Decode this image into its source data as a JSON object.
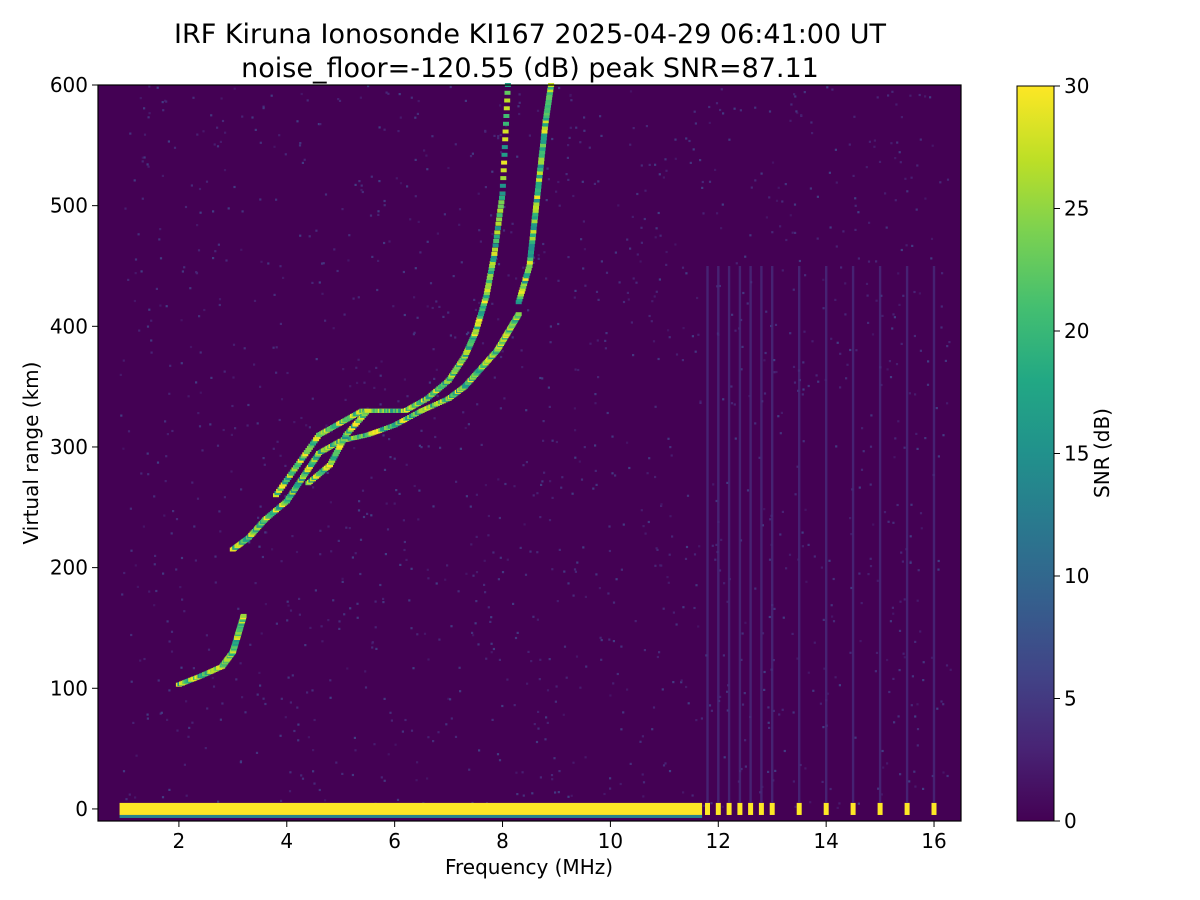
{
  "chart_data": {
    "type": "heatmap",
    "title": "IRF Kiruna Ionosonde KI167 2025-04-29 06:41:00  UT",
    "subtitle": "noise_floor=-120.55 (dB) peak SNR=87.11",
    "xlabel": "Frequency (MHz)",
    "ylabel": "Virtual range (km)",
    "xlim": [
      0.5,
      16.5
    ],
    "ylim": [
      -10,
      600
    ],
    "x_ticks": [
      2,
      4,
      6,
      8,
      10,
      12,
      14,
      16
    ],
    "y_ticks": [
      0,
      100,
      200,
      300,
      400,
      500,
      600
    ],
    "colorbar": {
      "label": "SNR (dB)",
      "min": 0,
      "max": 30,
      "ticks": [
        0,
        5,
        10,
        15,
        20,
        25,
        30
      ],
      "colormap": "viridis"
    },
    "sweep_range_mhz": [
      0.9,
      16.3
    ],
    "ground_band": {
      "range_km": [
        -5,
        5
      ],
      "freq_mhz": [
        0.9,
        11.7
      ],
      "snr_db": 30
    },
    "discrete_channels_mhz": [
      11.8,
      12.0,
      12.2,
      12.4,
      12.6,
      12.8,
      13.0,
      13.5,
      14.0,
      14.5,
      15.0,
      15.5,
      16.0
    ],
    "traces": [
      {
        "freq_mhz": [
          2.0,
          2.4,
          2.8,
          3.0,
          3.1,
          3.2
        ],
        "range_km": [
          103,
          110,
          118,
          130,
          145,
          160
        ]
      },
      {
        "freq_mhz": [
          3.0,
          3.3,
          3.6,
          4.0,
          4.3,
          4.6,
          5.0,
          5.5,
          6.0,
          6.5,
          7.0,
          7.3,
          7.6,
          7.9,
          8.1,
          8.3
        ],
        "range_km": [
          215,
          225,
          240,
          255,
          275,
          295,
          305,
          310,
          318,
          330,
          340,
          350,
          365,
          380,
          395,
          410
        ]
      },
      {
        "freq_mhz": [
          3.8,
          4.2,
          4.6,
          5.0,
          5.4,
          5.8,
          6.2,
          6.6,
          7.0,
          7.3,
          7.5,
          7.7,
          7.85,
          8.0,
          8.1
        ],
        "range_km": [
          260,
          285,
          310,
          320,
          330,
          330,
          330,
          340,
          355,
          375,
          395,
          425,
          460,
          510,
          600
        ]
      },
      {
        "freq_mhz": [
          4.4,
          4.8,
          5.1,
          5.5
        ],
        "range_km": [
          270,
          285,
          310,
          330
        ]
      },
      {
        "freq_mhz": [
          8.3,
          8.5,
          8.6,
          8.7,
          8.8,
          8.9
        ],
        "range_km": [
          420,
          450,
          490,
          530,
          570,
          600
        ]
      }
    ],
    "peak_snr_db": 30,
    "noise_snr_db": 1.5
  }
}
